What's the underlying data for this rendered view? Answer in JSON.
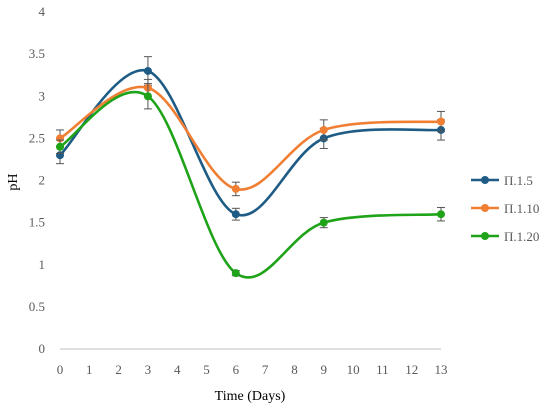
{
  "chart_data": {
    "type": "line",
    "title": "",
    "xlabel": "Time (Days)",
    "ylabel": "pH",
    "x_ticks": [
      "0",
      "1",
      "2",
      "3",
      "4",
      "5",
      "6",
      "7",
      "8",
      "9",
      "10",
      "11",
      "12",
      "13"
    ],
    "y_ticks": [
      "0",
      "0.5",
      "1",
      "1.5",
      "2",
      "2.5",
      "3",
      "3.5",
      "4"
    ],
    "ylim": [
      0,
      4
    ],
    "x": [
      0,
      3,
      6,
      9,
      13
    ],
    "series": [
      {
        "name": "П.1.5",
        "color": "#1f5c85",
        "values": [
          2.3,
          3.3,
          1.6,
          2.5,
          2.6
        ],
        "errors": [
          0.1,
          0.17,
          0.07,
          0.12,
          0.12
        ]
      },
      {
        "name": "П.1.10",
        "color": "#f07f34",
        "values": [
          2.5,
          3.1,
          1.9,
          2.6,
          2.7
        ],
        "errors": [
          0.1,
          0.1,
          0.08,
          0.12,
          0.12
        ]
      },
      {
        "name": "П.1.20",
        "color": "#1fa319",
        "values": [
          2.4,
          3.0,
          0.9,
          1.5,
          1.6
        ],
        "errors": [
          0.08,
          0.15,
          0.03,
          0.06,
          0.08
        ]
      }
    ],
    "grid": false,
    "legend": "right"
  }
}
